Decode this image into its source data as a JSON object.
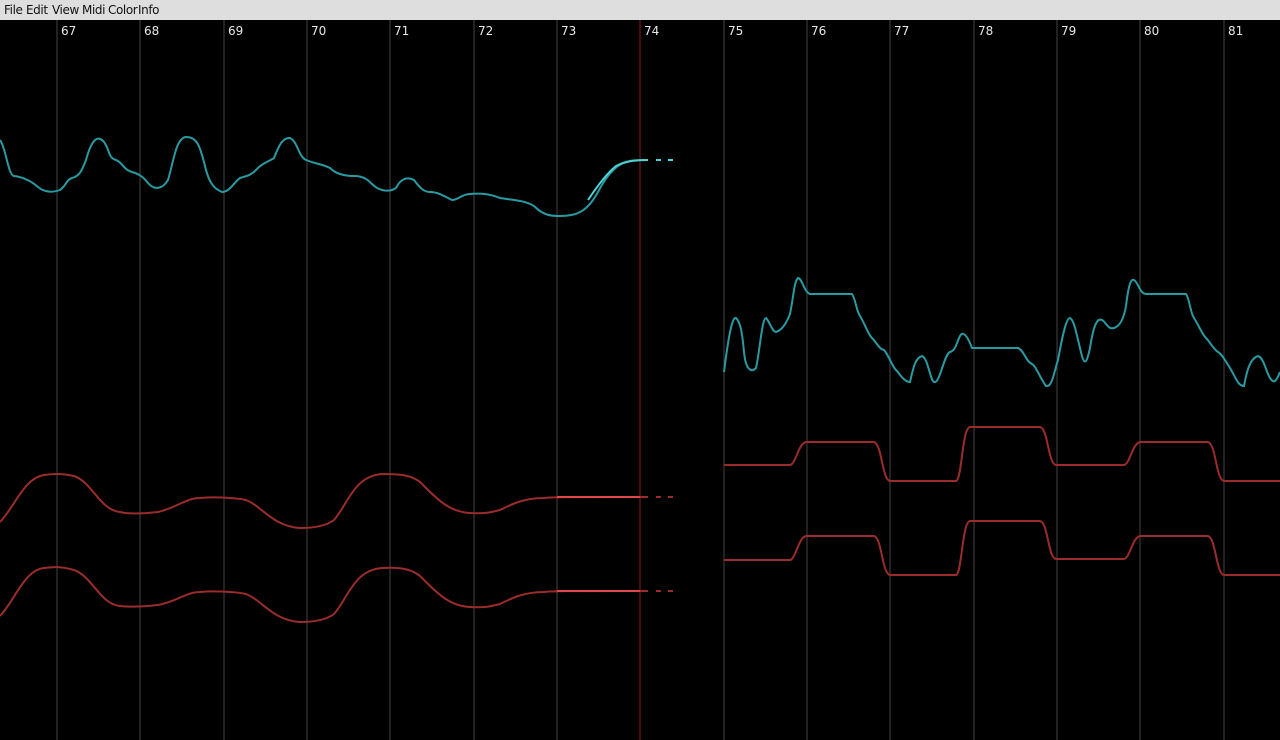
{
  "menu": [
    "File",
    "Edit",
    "View",
    "Midi",
    "Color",
    "Info"
  ],
  "bars": [
    "67",
    "68",
    "69",
    "70",
    "71",
    "72",
    "73",
    "74",
    "75",
    "76",
    "77",
    "78",
    "79",
    "80",
    "81"
  ],
  "colors": {
    "background": "#000000",
    "menubar": "#dedede",
    "gridline": "#454545",
    "playhead": "#5a1212",
    "pitch_curve": "#2a9aa2",
    "pitch_curve_active": "#4ed2d6",
    "voice_curve": "#9a2c2c",
    "voice_curve_active": "#e04848"
  }
}
